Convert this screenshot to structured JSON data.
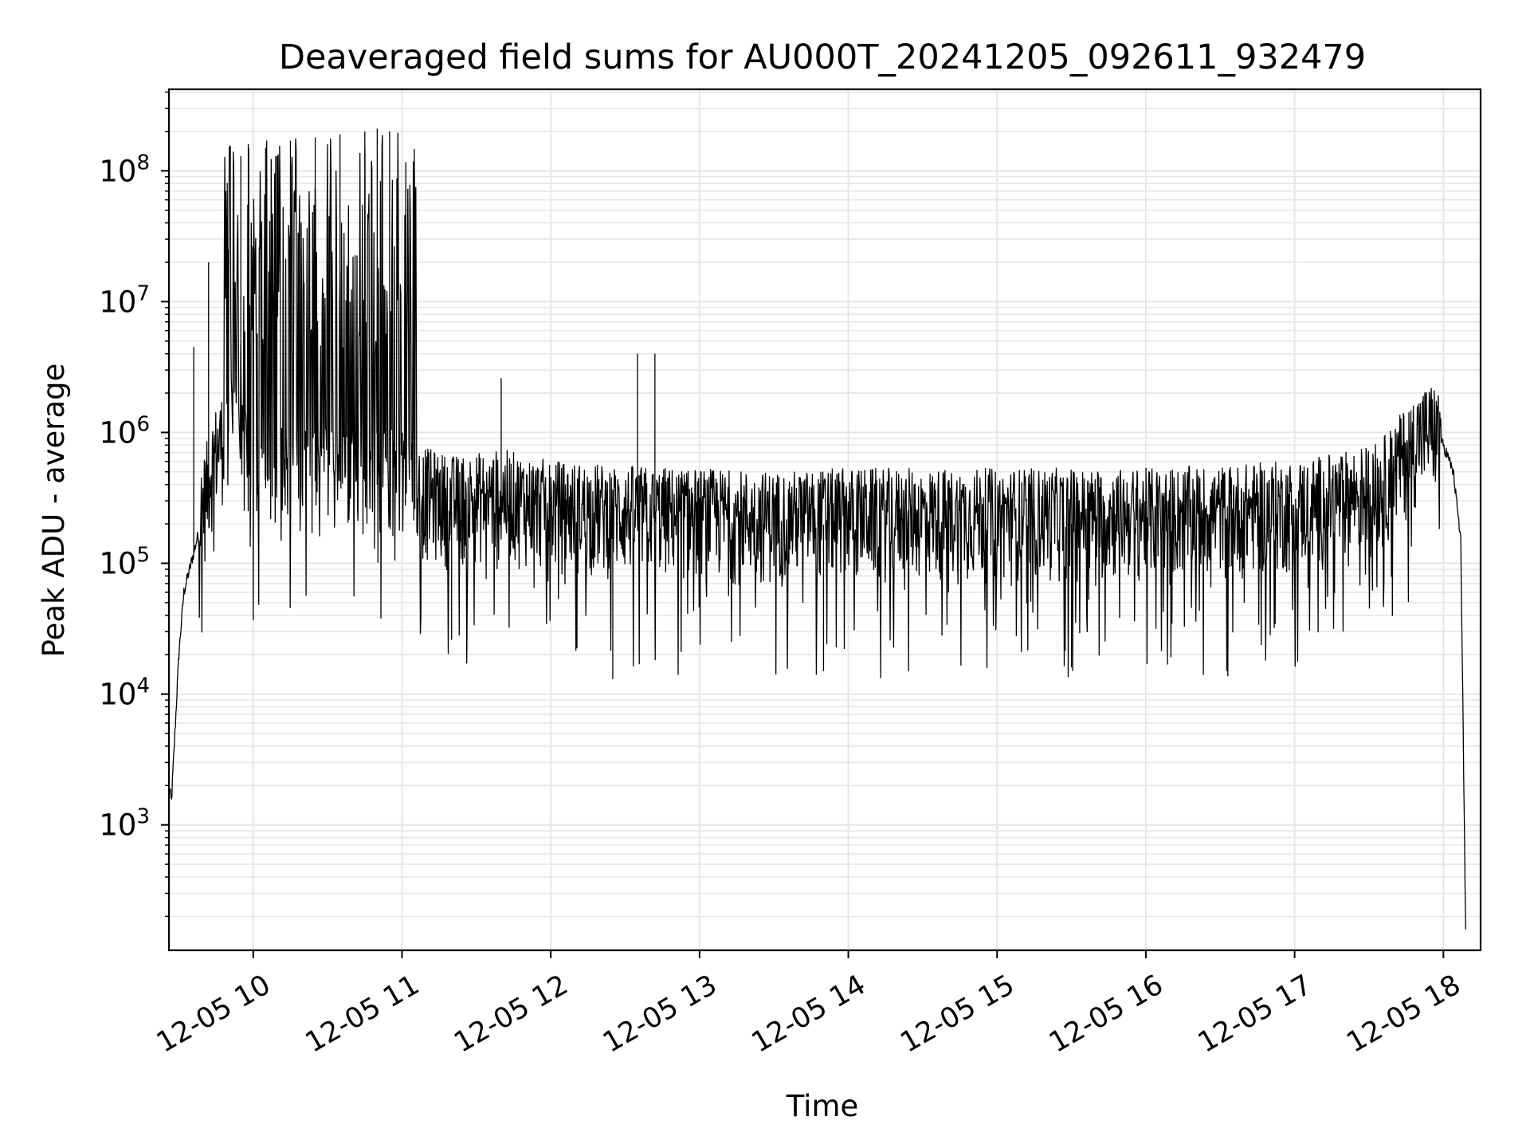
{
  "chart_data": {
    "type": "line",
    "title": "Deaveraged field sums for AU000T_20241205_092611_932479",
    "xlabel": "Time",
    "ylabel": "Peak ADU - average",
    "x_scale": "time",
    "y_scale": "log",
    "xlim": [
      "2024-12-05 09:26",
      "2024-12-05 18:15"
    ],
    "ylim": [
      110,
      420000000
    ],
    "grid": true,
    "grid_minor": true,
    "line_color": "#000000",
    "x_ticks": [
      "2024-12-05 10:00",
      "2024-12-05 11:00",
      "2024-12-05 12:00",
      "2024-12-05 13:00",
      "2024-12-05 14:00",
      "2024-12-05 15:00",
      "2024-12-05 16:00",
      "2024-12-05 17:00",
      "2024-12-05 18:00"
    ],
    "x_tick_labels": [
      "12-05 10",
      "12-05 11",
      "12-05 12",
      "12-05 13",
      "12-05 14",
      "12-05 15",
      "12-05 16",
      "12-05 17",
      "12-05 18"
    ],
    "y_ticks": [
      1000,
      10000,
      100000,
      1000000,
      10000000,
      100000000
    ],
    "y_tick_labels": [
      {
        "base": "10",
        "exp": "3"
      },
      {
        "base": "10",
        "exp": "4"
      },
      {
        "base": "10",
        "exp": "5"
      },
      {
        "base": "10",
        "exp": "6"
      },
      {
        "base": "10",
        "exp": "7"
      },
      {
        "base": "10",
        "exp": "8"
      }
    ],
    "series": [
      {
        "x": [
          "2024-12-05 09:26",
          "2024-12-05 09:27",
          "2024-12-05 09:28",
          "2024-12-05 09:30",
          "2024-12-05 09:32",
          "2024-12-05 09:36",
          "2024-12-05 09:40",
          "2024-12-05 09:44",
          "2024-12-05 09:48",
          "2024-12-05 09:50",
          "2024-12-05 09:52",
          "2024-12-05 09:55",
          "2024-12-05 10:00",
          "2024-12-05 10:10",
          "2024-12-05 10:20",
          "2024-12-05 10:30",
          "2024-12-05 10:40",
          "2024-12-05 10:50",
          "2024-12-05 11:00",
          "2024-12-05 11:06",
          "2024-12-05 11:20",
          "2024-12-05 11:40",
          "2024-12-05 12:00",
          "2024-12-05 12:30",
          "2024-12-05 13:00",
          "2024-12-05 13:30",
          "2024-12-05 14:00",
          "2024-12-05 14:30",
          "2024-12-05 15:00",
          "2024-12-05 15:30",
          "2024-12-05 16:00",
          "2024-12-05 16:30",
          "2024-12-05 17:00",
          "2024-12-05 17:20",
          "2024-12-05 17:35",
          "2024-12-05 17:45",
          "2024-12-05 17:50",
          "2024-12-05 17:55",
          "2024-12-05 18:00",
          "2024-12-05 18:04",
          "2024-12-05 18:07",
          "2024-12-05 18:09"
        ],
        "y": [
          2000,
          1500,
          3500,
          20000,
          60000,
          120000,
          250000,
          550000,
          800000,
          1000000,
          1200000,
          700000,
          350000,
          400000,
          450000,
          400000,
          450000,
          400000,
          380000,
          300000,
          250000,
          280000,
          230000,
          210000,
          200000,
          190000,
          200000,
          200000,
          200000,
          200000,
          200000,
          210000,
          230000,
          270000,
          330000,
          600000,
          800000,
          900000,
          800000,
          500000,
          150000,
          150
        ],
        "noise_band": [
          0.3,
          3.0
        ],
        "spikes": [
          {
            "x": "2024-12-05 09:36",
            "y": 4500000
          },
          {
            "x": "2024-12-05 09:42",
            "y": 20000000
          },
          {
            "x": "2024-12-05 09:50",
            "y": 25000000
          },
          {
            "x": "2024-12-05 09:55",
            "y": 130000000
          },
          {
            "x": "2024-12-05 09:58",
            "y": 160000000
          },
          {
            "x": "2024-12-05 10:05",
            "y": 150000000
          },
          {
            "x": "2024-12-05 10:15",
            "y": 170000000
          },
          {
            "x": "2024-12-05 10:25",
            "y": 180000000
          },
          {
            "x": "2024-12-05 10:35",
            "y": 190000000
          },
          {
            "x": "2024-12-05 10:45",
            "y": 200000000
          },
          {
            "x": "2024-12-05 10:50",
            "y": 210000000
          },
          {
            "x": "2024-12-05 10:55",
            "y": 200000000
          },
          {
            "x": "2024-12-05 11:05",
            "y": 100000000
          },
          {
            "x": "2024-12-05 11:40",
            "y": 2600000
          },
          {
            "x": "2024-12-05 12:35",
            "y": 4000000
          },
          {
            "x": "2024-12-05 12:42",
            "y": 4000000
          },
          {
            "x": "2024-12-05 11:20",
            "y": 26000
          },
          {
            "x": "2024-12-05 12:25",
            "y": 13000
          },
          {
            "x": "2024-12-05 13:50",
            "y": 15000
          },
          {
            "x": "2024-12-05 15:30",
            "y": 16000
          }
        ]
      }
    ]
  }
}
